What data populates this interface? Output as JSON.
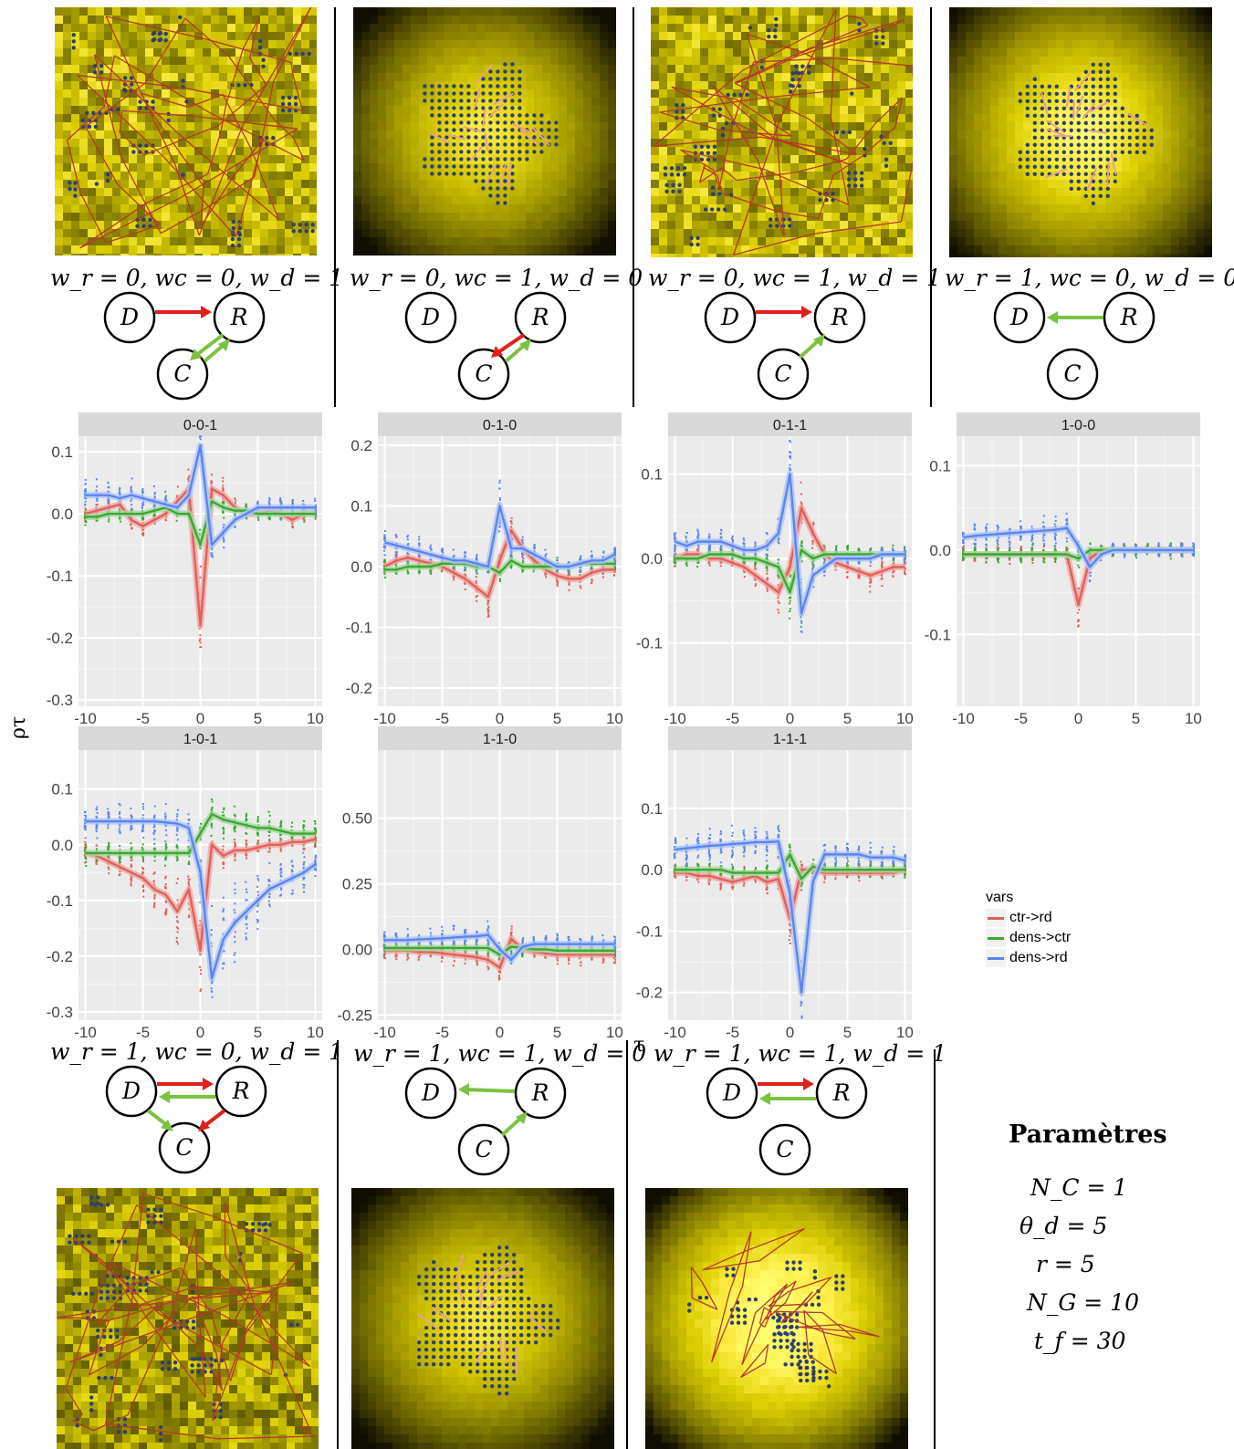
{
  "chart_data": {
    "type": "line",
    "y_axis_label": "ρτ",
    "x_axis_label": "τ",
    "x_ticks": [
      -10,
      -5,
      0,
      5,
      10
    ],
    "legend": {
      "title": "vars",
      "entries": [
        {
          "name": "ctr->rd",
          "color": "#e0605a"
        },
        {
          "name": "dens->ctr",
          "color": "#3aa832"
        },
        {
          "name": "dens->rd",
          "color": "#5b86f0"
        }
      ],
      "placement": "right"
    },
    "x": [
      -10,
      -9,
      -8,
      -7,
      -6,
      -5,
      -4,
      -3,
      -2,
      -1,
      0,
      1,
      2,
      3,
      4,
      5,
      6,
      7,
      8,
      9,
      10
    ],
    "panels": [
      {
        "strip": "0-0-1",
        "ylim": [
          -0.31,
          0.125
        ],
        "y_ticks": [
          {
            "v": 0.1,
            "t": "0.1"
          },
          {
            "v": 0.0,
            "t": "0.0"
          },
          {
            "v": -0.1,
            "t": "-0.1"
          },
          {
            "v": -0.2,
            "t": "-0.2"
          },
          {
            "v": -0.3,
            "t": "-0.3"
          }
        ],
        "series": [
          {
            "name": "ctr->rd",
            "values": [
              0.0,
              0.005,
              0.01,
              0.015,
              -0.01,
              -0.02,
              -0.01,
              0.0,
              0.02,
              0.04,
              -0.18,
              0.04,
              0.03,
              0.01,
              0.0,
              0.0,
              0.005,
              0.0,
              -0.01,
              0.0,
              0.0
            ]
          },
          {
            "name": "dens->ctr",
            "values": [
              -0.005,
              -0.005,
              0.0,
              0.0,
              0.0,
              0.0,
              0.005,
              0.01,
              0.0,
              0.0,
              -0.05,
              0.02,
              0.01,
              0.005,
              0.005,
              0.0,
              0.0,
              0.0,
              0.0,
              0.0,
              0.0
            ]
          },
          {
            "name": "dens->rd",
            "values": [
              0.03,
              0.03,
              0.03,
              0.025,
              0.03,
              0.025,
              0.02,
              0.015,
              0.01,
              0.03,
              0.11,
              -0.05,
              -0.03,
              -0.01,
              0.0,
              0.01,
              0.01,
              0.01,
              0.01,
              0.01,
              0.01
            ]
          }
        ]
      },
      {
        "strip": "0-1-0",
        "ylim": [
          -0.23,
          0.215
        ],
        "y_ticks": [
          {
            "v": 0.2,
            "t": "0.2"
          },
          {
            "v": 0.1,
            "t": "0.1"
          },
          {
            "v": 0.0,
            "t": "0.0"
          },
          {
            "v": -0.1,
            "t": "-0.1"
          },
          {
            "v": -0.2,
            "t": "-0.2"
          }
        ],
        "series": [
          {
            "name": "ctr->rd",
            "values": [
              0.0,
              0.01,
              0.015,
              0.01,
              0.005,
              0.0,
              -0.01,
              -0.02,
              -0.035,
              -0.05,
              0.01,
              0.06,
              0.03,
              0.01,
              -0.005,
              -0.015,
              -0.02,
              -0.02,
              -0.01,
              -0.005,
              -0.005
            ]
          },
          {
            "name": "dens->ctr",
            "values": [
              -0.005,
              -0.005,
              0.0,
              0.0,
              0.0,
              0.005,
              0.005,
              0.005,
              0.0,
              0.0,
              -0.01,
              0.01,
              0.0,
              0.0,
              0.0,
              0.0,
              0.0,
              0.005,
              0.005,
              0.005,
              0.005
            ]
          },
          {
            "name": "dens->rd",
            "values": [
              0.04,
              0.035,
              0.03,
              0.025,
              0.02,
              0.015,
              0.01,
              0.01,
              0.005,
              0.0,
              0.1,
              0.03,
              0.03,
              0.02,
              0.01,
              0.0,
              0.0,
              0.005,
              0.01,
              0.01,
              0.02
            ]
          }
        ]
      },
      {
        "strip": "0-1-1",
        "ylim": [
          -0.175,
          0.145
        ],
        "y_ticks": [
          {
            "v": 0.1,
            "t": "0.1"
          },
          {
            "v": 0.0,
            "t": "0.0"
          },
          {
            "v": -0.1,
            "t": "-0.1"
          }
        ],
        "series": [
          {
            "name": "ctr->rd",
            "values": [
              0.0,
              0.005,
              0.005,
              0.0,
              0.0,
              -0.005,
              -0.01,
              -0.02,
              -0.03,
              -0.04,
              -0.01,
              0.06,
              0.03,
              0.005,
              -0.005,
              -0.01,
              -0.015,
              -0.02,
              -0.015,
              -0.01,
              -0.01
            ]
          },
          {
            "name": "dens->ctr",
            "values": [
              0.0,
              0.0,
              0.0,
              0.005,
              0.005,
              0.005,
              0.0,
              0.0,
              -0.005,
              -0.01,
              -0.04,
              0.01,
              0.0,
              0.005,
              0.005,
              0.005,
              0.005,
              0.005,
              0.005,
              0.005,
              0.005
            ]
          },
          {
            "name": "dens->rd",
            "values": [
              0.02,
              0.015,
              0.02,
              0.02,
              0.02,
              0.015,
              0.01,
              0.01,
              0.015,
              0.03,
              0.1,
              -0.065,
              -0.02,
              -0.01,
              0.0,
              0.0,
              0.0,
              0.0,
              0.005,
              0.005,
              0.005
            ]
          }
        ]
      },
      {
        "strip": "1-0-0",
        "ylim": [
          -0.185,
          0.135
        ],
        "y_ticks": [
          {
            "v": 0.1,
            "t": "0.1"
          },
          {
            "v": 0.0,
            "t": "0.0"
          },
          {
            "v": -0.1,
            "t": "-0.1"
          }
        ],
        "series": [
          {
            "name": "ctr->rd",
            "values": [
              -0.005,
              -0.005,
              -0.005,
              -0.005,
              -0.005,
              -0.005,
              -0.005,
              -0.005,
              -0.005,
              -0.005,
              -0.065,
              -0.01,
              0.0,
              0.0,
              0.0,
              0.0,
              0.0,
              0.0,
              0.0,
              0.0,
              0.0
            ]
          },
          {
            "name": "dens->ctr",
            "values": [
              -0.005,
              -0.005,
              -0.005,
              -0.005,
              -0.005,
              -0.005,
              -0.005,
              -0.005,
              -0.005,
              -0.005,
              -0.01,
              0.0,
              0.0,
              0.0,
              0.0,
              0.0,
              0.0,
              0.0,
              0.0,
              0.0,
              0.0
            ]
          },
          {
            "name": "dens->rd",
            "values": [
              0.015,
              0.017,
              0.018,
              0.019,
              0.02,
              0.021,
              0.022,
              0.023,
              0.024,
              0.026,
              0.005,
              -0.02,
              -0.005,
              0.0,
              0.0,
              0.0,
              0.0,
              0.0,
              0.0,
              0.0,
              0.0
            ]
          }
        ]
      },
      {
        "strip": "1-0-1",
        "ylim": [
          -0.315,
          0.17
        ],
        "y_ticks": [
          {
            "v": 0.1,
            "t": "0.1"
          },
          {
            "v": 0.0,
            "t": "0.0"
          },
          {
            "v": -0.1,
            "t": "-0.1"
          },
          {
            "v": -0.2,
            "t": "-0.2"
          },
          {
            "v": -0.3,
            "t": "-0.3"
          }
        ],
        "series": [
          {
            "name": "ctr->rd",
            "values": [
              -0.015,
              -0.02,
              -0.03,
              -0.04,
              -0.05,
              -0.06,
              -0.08,
              -0.09,
              -0.12,
              -0.08,
              -0.19,
              0.0,
              -0.02,
              -0.01,
              -0.01,
              -0.005,
              0.0,
              0.0,
              0.005,
              0.005,
              0.01
            ]
          },
          {
            "name": "dens->ctr",
            "values": [
              -0.015,
              -0.015,
              -0.015,
              -0.015,
              -0.015,
              -0.015,
              -0.015,
              -0.015,
              -0.015,
              -0.015,
              0.02,
              0.055,
              0.045,
              0.04,
              0.035,
              0.03,
              0.03,
              0.025,
              0.02,
              0.02,
              0.02
            ]
          },
          {
            "name": "dens->rd",
            "values": [
              0.042,
              0.042,
              0.042,
              0.042,
              0.042,
              0.042,
              0.042,
              0.04,
              0.038,
              0.03,
              -0.05,
              -0.24,
              -0.17,
              -0.14,
              -0.12,
              -0.1,
              -0.08,
              -0.07,
              -0.06,
              -0.05,
              -0.035
            ]
          }
        ]
      },
      {
        "strip": "1-1-0",
        "ylim": [
          -0.27,
          0.76
        ],
        "y_ticks": [
          {
            "v": 0.5,
            "t": "0.50"
          },
          {
            "v": 0.25,
            "t": "0.25"
          },
          {
            "v": 0.0,
            "t": "0.00"
          },
          {
            "v": -0.25,
            "t": "-0.25"
          }
        ],
        "series": [
          {
            "name": "ctr->rd",
            "values": [
              -0.005,
              -0.005,
              -0.005,
              -0.01,
              -0.01,
              -0.015,
              -0.02,
              -0.025,
              -0.03,
              -0.04,
              -0.07,
              0.04,
              0.0,
              -0.01,
              -0.015,
              -0.02,
              -0.02,
              -0.02,
              -0.02,
              -0.02,
              -0.02
            ]
          },
          {
            "name": "dens->ctr",
            "values": [
              0.005,
              0.005,
              0.005,
              0.005,
              0.005,
              0.005,
              0.005,
              0.005,
              0.005,
              0.005,
              -0.02,
              0.01,
              0.005,
              0.0,
              0.0,
              -0.005,
              -0.005,
              -0.005,
              -0.005,
              -0.005,
              -0.005
            ]
          },
          {
            "name": "dens->rd",
            "values": [
              0.035,
              0.035,
              0.035,
              0.038,
              0.04,
              0.042,
              0.045,
              0.048,
              0.05,
              0.055,
              0.0,
              -0.04,
              0.01,
              0.02,
              0.02,
              0.02,
              0.02,
              0.02,
              0.02,
              0.02,
              0.02
            ]
          }
        ]
      },
      {
        "strip": "1-1-1",
        "ylim": [
          -0.245,
          0.195
        ],
        "y_ticks": [
          {
            "v": 0.1,
            "t": "0.1"
          },
          {
            "v": 0.0,
            "t": "0.0"
          },
          {
            "v": -0.1,
            "t": "-0.1"
          },
          {
            "v": -0.2,
            "t": "-0.2"
          }
        ],
        "series": [
          {
            "name": "ctr->rd",
            "values": [
              -0.005,
              -0.005,
              -0.01,
              -0.01,
              -0.015,
              -0.02,
              -0.015,
              -0.01,
              -0.02,
              -0.015,
              -0.08,
              0.0,
              0.0,
              -0.005,
              -0.005,
              -0.005,
              -0.005,
              -0.005,
              -0.005,
              -0.005,
              0.0
            ]
          },
          {
            "name": "dens->ctr",
            "values": [
              0.0,
              0.0,
              0.0,
              0.0,
              0.0,
              -0.005,
              -0.005,
              -0.005,
              -0.005,
              -0.005,
              0.025,
              -0.015,
              0.005,
              0.0,
              0.0,
              0.0,
              0.0,
              0.0,
              0.0,
              0.0,
              0.0
            ]
          },
          {
            "name": "dens->rd",
            "values": [
              0.033,
              0.035,
              0.037,
              0.039,
              0.04,
              0.042,
              0.043,
              0.045,
              0.045,
              0.046,
              -0.04,
              -0.2,
              -0.02,
              0.025,
              0.025,
              0.025,
              0.025,
              0.02,
              0.02,
              0.02,
              0.015
            ]
          }
        ]
      }
    ]
  },
  "config_labels": [
    "w_r = 0, wc = 0, w_d = 1",
    "w_r = 0, wc = 1, w_d = 0",
    "w_r = 0, wc = 1, w_d = 1",
    "w_r = 1, wc = 0, w_d = 0",
    "w_r = 1, wc = 0, w_d = 1",
    "w_r = 1, wc = 1, w_d = 0",
    "w_r = 1, wc = 1, w_d = 1"
  ],
  "node_labels": {
    "D": "D",
    "R": "R",
    "C": "C"
  },
  "colors": {
    "positive_edge": "#7cc242",
    "negative_edge": "#e0201c",
    "panel_bg": "#ebebeb",
    "strip_bg": "#d9d9d9"
  },
  "parameters": {
    "title": "Paramètres",
    "items": [
      "N_C = 1",
      "θ_d = 5",
      "r = 5",
      "N_G = 10",
      "t_f = 30"
    ]
  }
}
